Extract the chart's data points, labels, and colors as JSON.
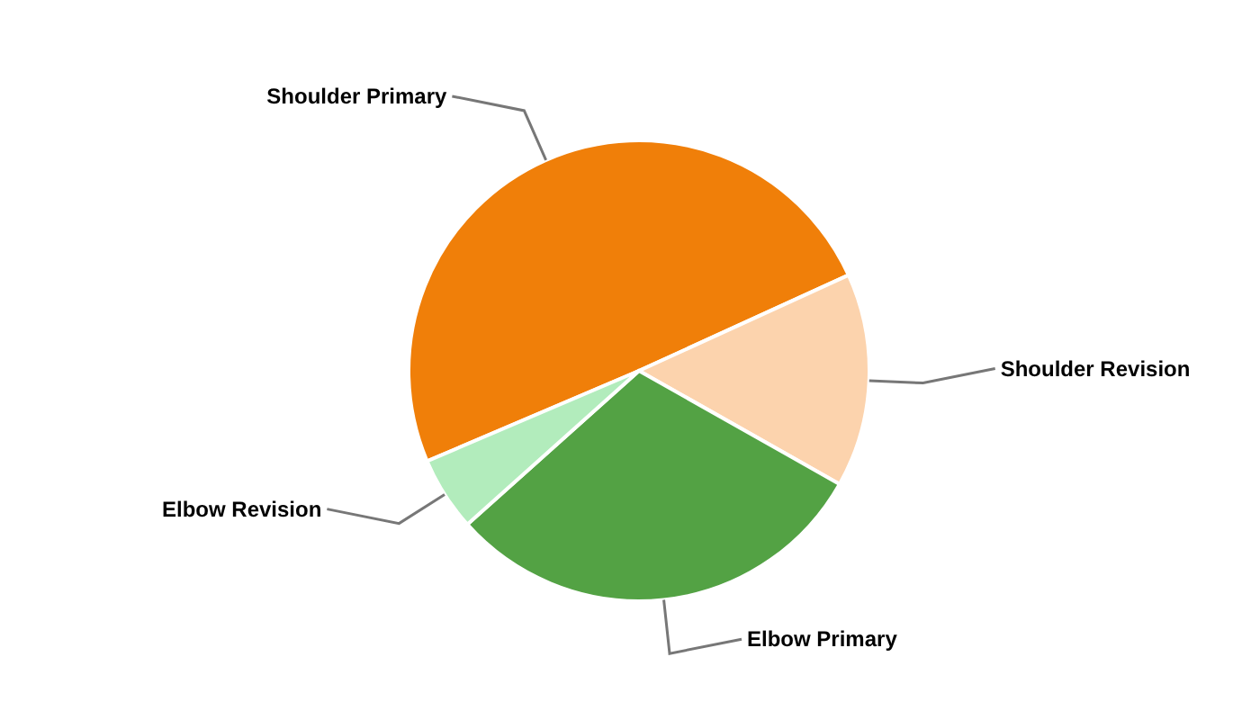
{
  "chart_data": {
    "type": "pie",
    "categories": [
      "Shoulder Primary",
      "Shoulder Revision",
      "Elbow Primary",
      "Elbow Revision"
    ],
    "values": [
      49.6,
      15.0,
      30.2,
      5.2
    ],
    "colors": [
      "#f07f09",
      "#fcd3ad",
      "#53a244",
      "#b2ecbc"
    ],
    "legend": false
  }
}
